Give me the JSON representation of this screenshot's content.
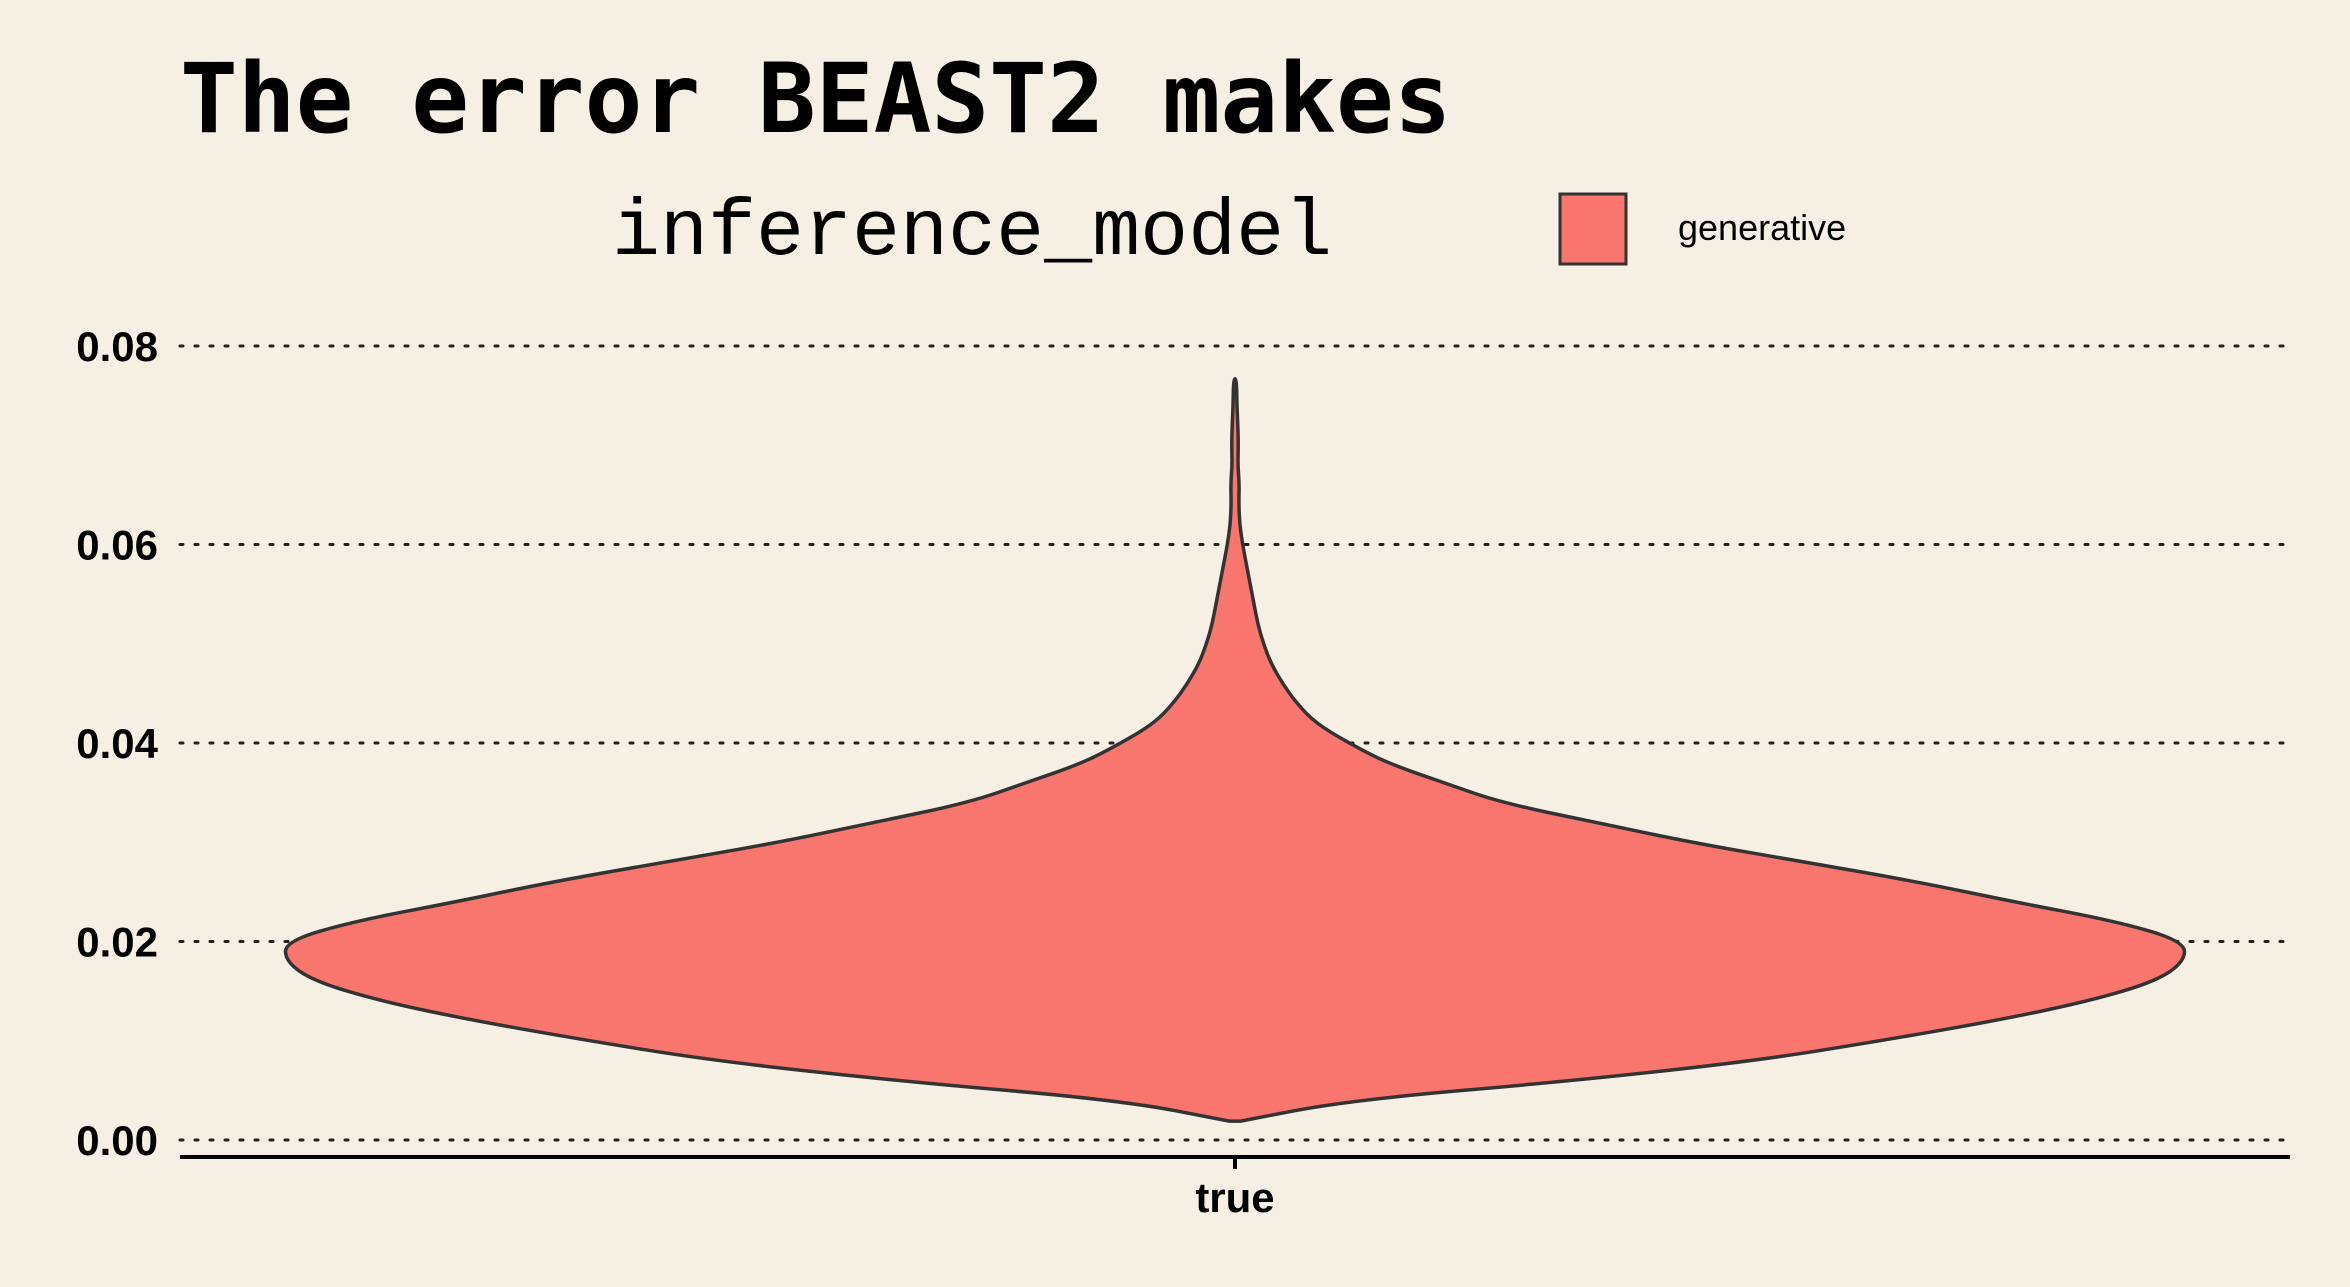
{
  "chart_data": {
    "type": "violin",
    "title": "The error BEAST2 makes",
    "xlabel": "",
    "ylabel": "",
    "legend": {
      "title": "inference_model",
      "position": "top",
      "entries": [
        {
          "label": "generative",
          "color": "#f8766d"
        }
      ]
    },
    "categories": [
      "true"
    ],
    "ylim": [
      0,
      0.08
    ],
    "y_ticks": [
      "0.00",
      "0.02",
      "0.04",
      "0.06",
      "0.08"
    ],
    "grid": "horizontal-dotted",
    "series": [
      {
        "name": "generative",
        "color": "#f8766d",
        "stroke": "#333333",
        "category": "true",
        "density_profile": [
          {
            "y": 0.0019,
            "w": 0.006
          },
          {
            "y": 0.004,
            "w": 0.12
          },
          {
            "y": 0.006,
            "w": 0.36
          },
          {
            "y": 0.008,
            "w": 0.55
          },
          {
            "y": 0.01,
            "w": 0.68
          },
          {
            "y": 0.012,
            "w": 0.8
          },
          {
            "y": 0.014,
            "w": 0.9
          },
          {
            "y": 0.016,
            "w": 0.97
          },
          {
            "y": 0.018,
            "w": 1.0
          },
          {
            "y": 0.02,
            "w": 1.0
          },
          {
            "y": 0.022,
            "w": 0.93
          },
          {
            "y": 0.024,
            "w": 0.82
          },
          {
            "y": 0.026,
            "w": 0.72
          },
          {
            "y": 0.028,
            "w": 0.6
          },
          {
            "y": 0.03,
            "w": 0.48
          },
          {
            "y": 0.032,
            "w": 0.38
          },
          {
            "y": 0.034,
            "w": 0.28
          },
          {
            "y": 0.036,
            "w": 0.22
          },
          {
            "y": 0.038,
            "w": 0.16
          },
          {
            "y": 0.04,
            "w": 0.12
          },
          {
            "y": 0.042,
            "w": 0.085
          },
          {
            "y": 0.044,
            "w": 0.065
          },
          {
            "y": 0.046,
            "w": 0.05
          },
          {
            "y": 0.048,
            "w": 0.038
          },
          {
            "y": 0.05,
            "w": 0.03
          },
          {
            "y": 0.052,
            "w": 0.024
          },
          {
            "y": 0.054,
            "w": 0.02
          },
          {
            "y": 0.056,
            "w": 0.016
          },
          {
            "y": 0.058,
            "w": 0.012
          },
          {
            "y": 0.06,
            "w": 0.008
          },
          {
            "y": 0.062,
            "w": 0.005
          },
          {
            "y": 0.064,
            "w": 0.004
          },
          {
            "y": 0.066,
            "w": 0.0045
          },
          {
            "y": 0.068,
            "w": 0.003
          },
          {
            "y": 0.07,
            "w": 0.0035
          },
          {
            "y": 0.072,
            "w": 0.003
          },
          {
            "y": 0.074,
            "w": 0.002
          },
          {
            "y": 0.0767,
            "w": 0.0015
          }
        ]
      }
    ]
  }
}
